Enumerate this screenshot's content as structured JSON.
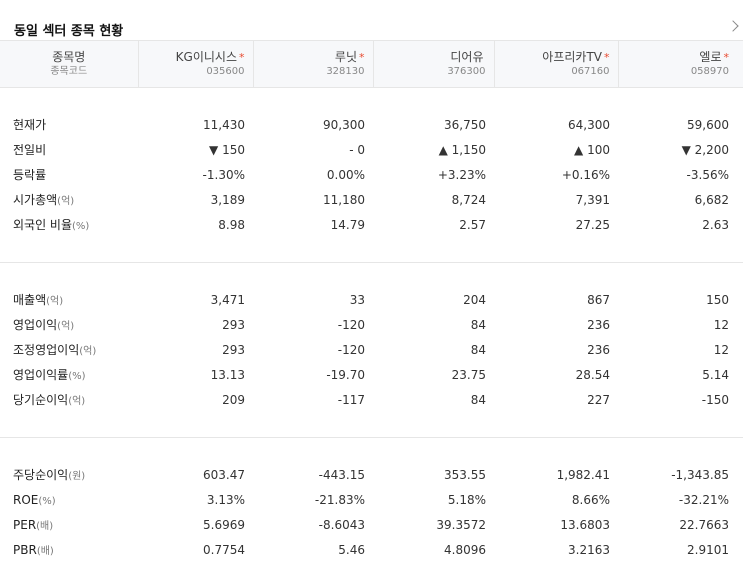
{
  "title": "동일 섹터 종목 현황",
  "header_label": {
    "name": "종목명",
    "code": "종목코드"
  },
  "companies": [
    {
      "name": "KG이니시스",
      "code": "035600",
      "star": "*"
    },
    {
      "name": "루닛",
      "code": "328130",
      "star": "*"
    },
    {
      "name": "디어유",
      "code": "376300",
      "star": ""
    },
    {
      "name": "아프리카TV",
      "code": "067160",
      "star": "*"
    },
    {
      "name": "엘로",
      "code": "058970",
      "star": "*"
    }
  ],
  "sections": [
    [
      {
        "label": "현재가",
        "unit": "",
        "values": [
          "11,430",
          "90,300",
          "36,750",
          "64,300",
          "59,600"
        ]
      },
      {
        "label": "전일비",
        "unit": "",
        "values": [
          "▼ 150",
          "- 0",
          "▲ 1,150",
          "▲ 100",
          "▼ 2,200"
        ],
        "colors": [
          "down",
          "",
          "up",
          "up",
          "down"
        ]
      },
      {
        "label": "등락률",
        "unit": "",
        "values": [
          "-1.30%",
          "0.00%",
          "+3.23%",
          "+0.16%",
          "-3.56%"
        ],
        "colors": [
          "down",
          "",
          "up",
          "up",
          "down"
        ]
      },
      {
        "label": "시가총액",
        "unit": "(억)",
        "values": [
          "3,189",
          "11,180",
          "8,724",
          "7,391",
          "6,682"
        ]
      },
      {
        "label": "외국인 비율",
        "unit": "(%)",
        "values": [
          "8.98",
          "14.79",
          "2.57",
          "27.25",
          "2.63"
        ]
      }
    ],
    [
      {
        "label": "매출액",
        "unit": "(억)",
        "values": [
          "3,471",
          "33",
          "204",
          "867",
          "150"
        ]
      },
      {
        "label": "영업이익",
        "unit": "(억)",
        "values": [
          "293",
          "-120",
          "84",
          "236",
          "12"
        ]
      },
      {
        "label": "조정영업이익",
        "unit": "(억)",
        "values": [
          "293",
          "-120",
          "84",
          "236",
          "12"
        ]
      },
      {
        "label": "영업이익률",
        "unit": "(%)",
        "values": [
          "13.13",
          "-19.70",
          "23.75",
          "28.54",
          "5.14"
        ]
      },
      {
        "label": "당기순이익",
        "unit": "(억)",
        "values": [
          "209",
          "-117",
          "84",
          "227",
          "-150"
        ]
      }
    ],
    [
      {
        "label": "주당순이익",
        "unit": "(원)",
        "values": [
          "603.47",
          "-443.15",
          "353.55",
          "1,982.41",
          "-1,343.85"
        ]
      },
      {
        "label": "ROE",
        "unit": "(%)",
        "values": [
          "3.13%",
          "-21.83%",
          "5.18%",
          "8.66%",
          "-32.21%"
        ]
      },
      {
        "label": "PER",
        "unit": "(배)",
        "values": [
          "5.6969",
          "-8.6043",
          "39.3572",
          "13.6803",
          "22.7663"
        ]
      },
      {
        "label": "PBR",
        "unit": "(배)",
        "values": [
          "0.7754",
          "5.46",
          "4.8096",
          "3.2163",
          "2.9101"
        ]
      }
    ]
  ],
  "colors": {
    "up": "#e02b2b",
    "down": "#1a5ed6",
    "star": "#e8492f"
  }
}
